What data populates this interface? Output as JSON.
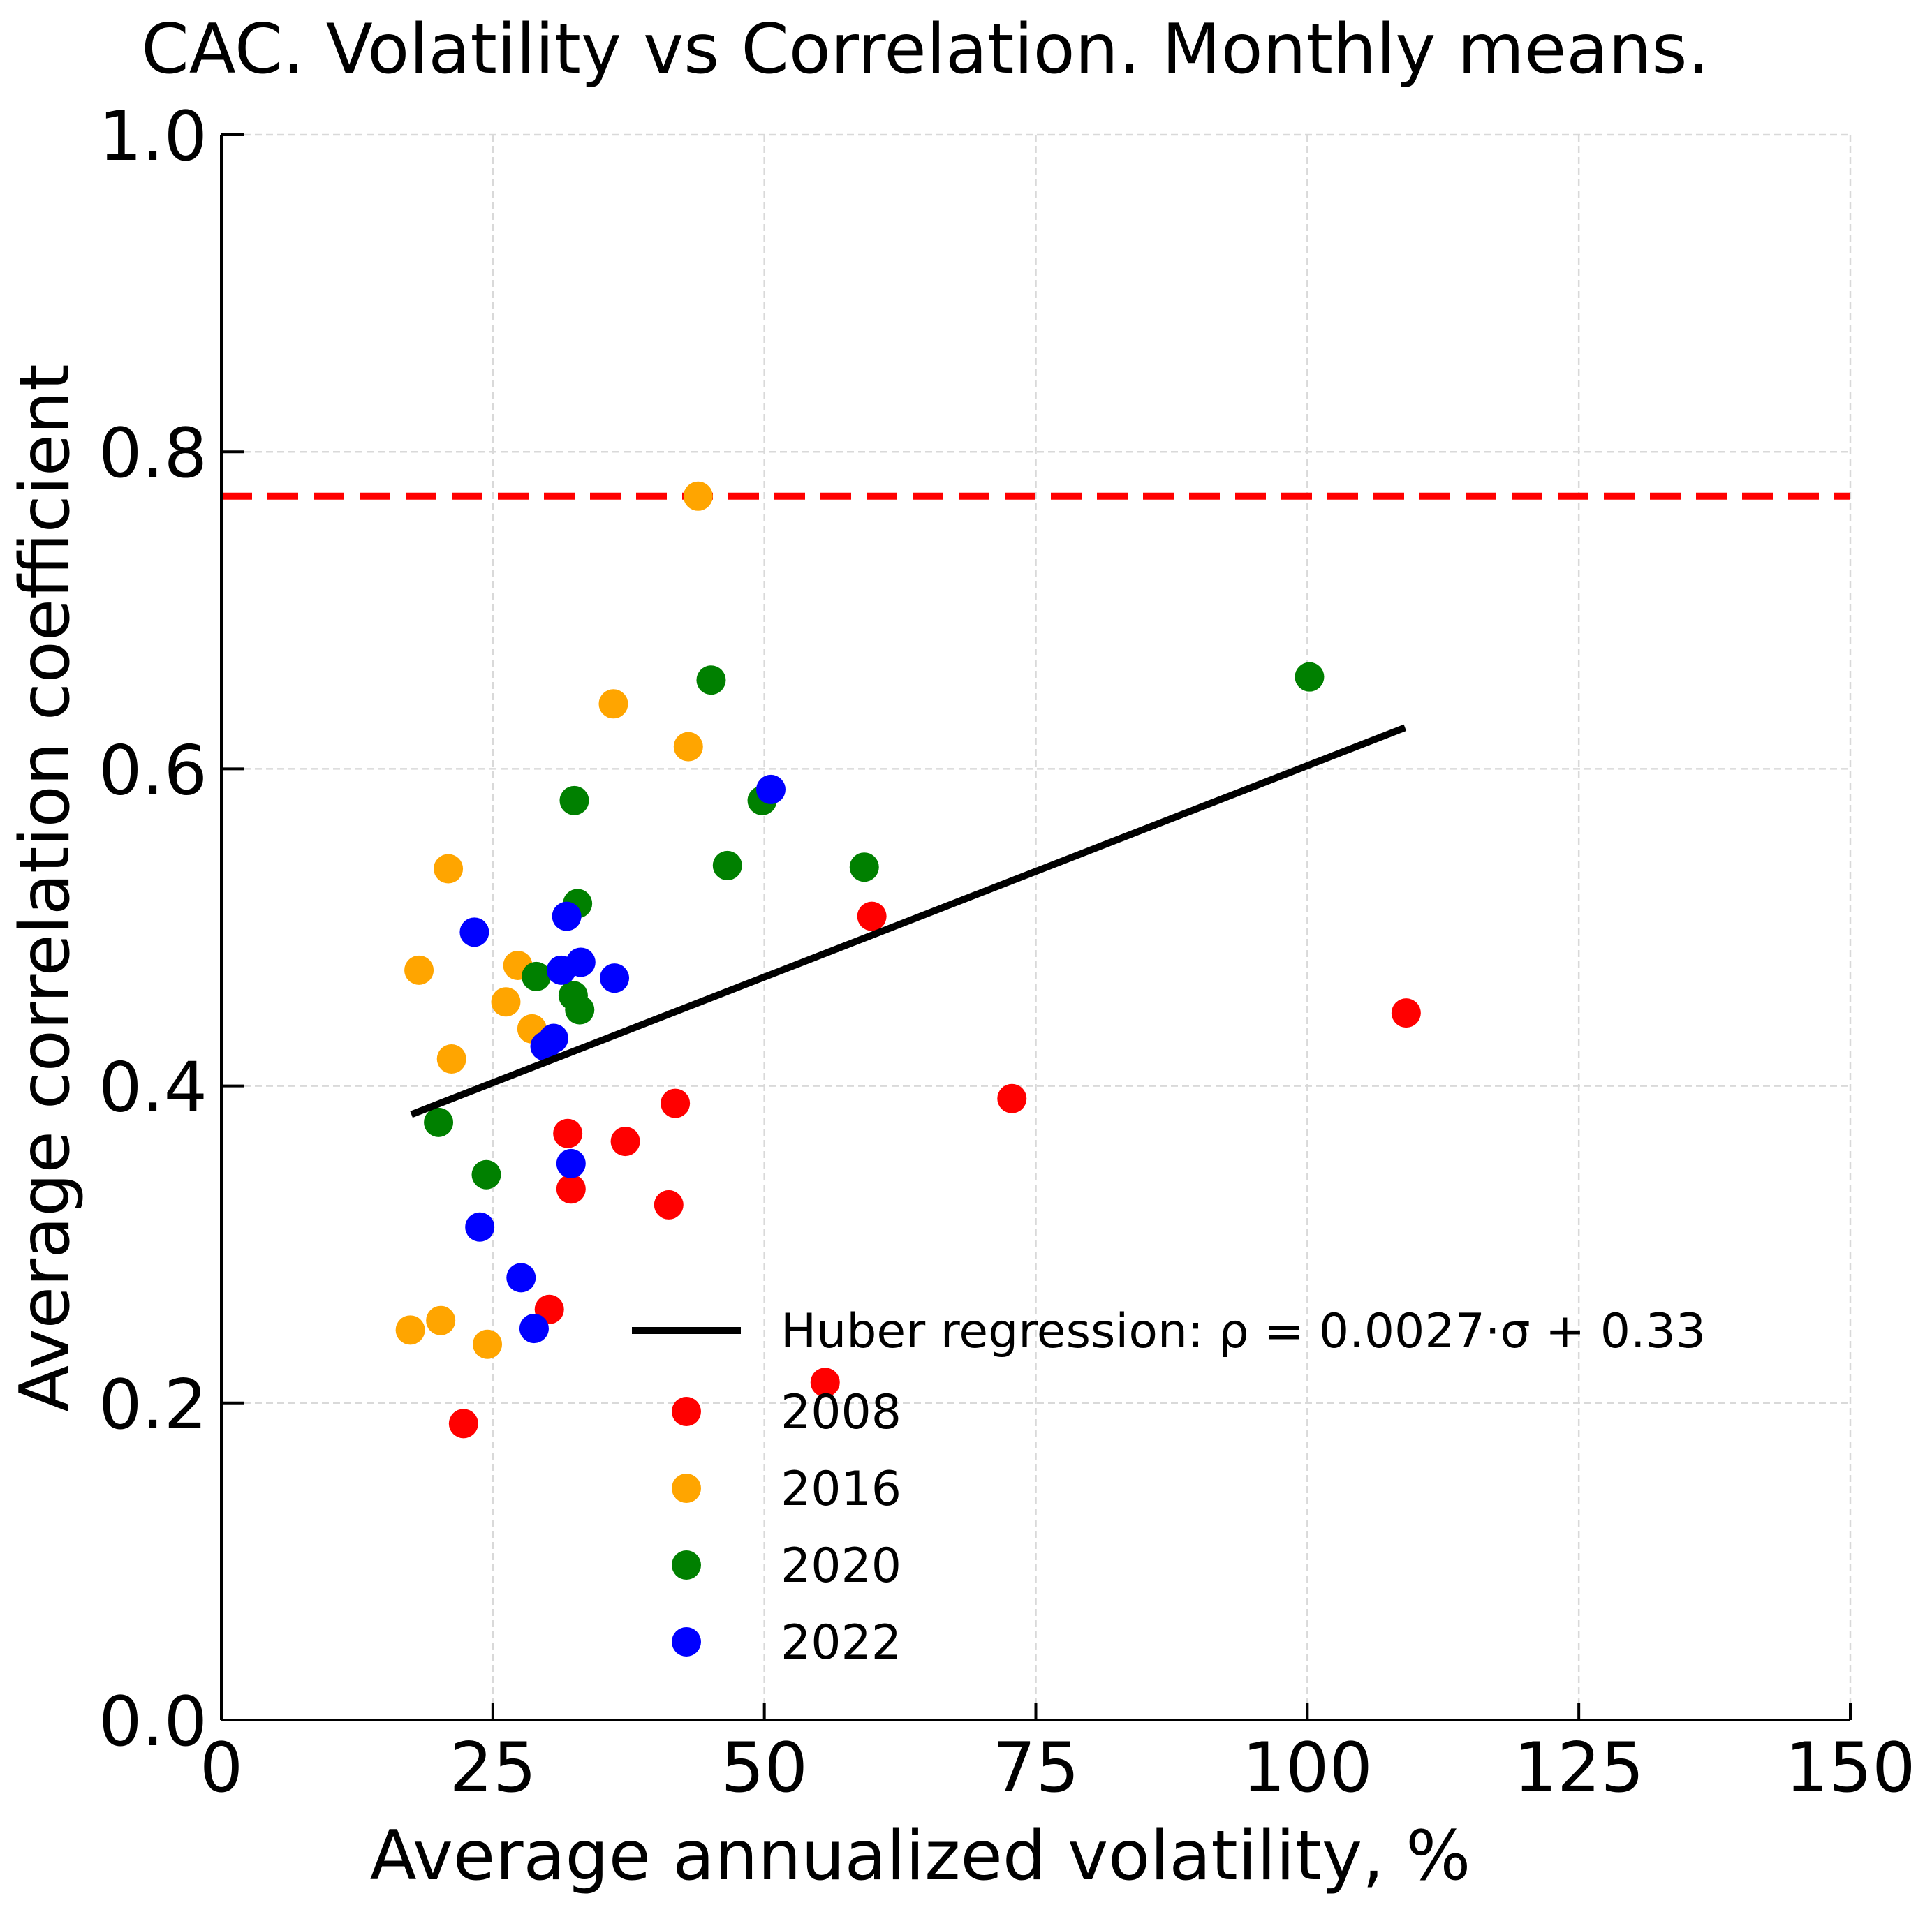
{
  "chart_data": {
    "type": "scatter",
    "title": "CAC. Volatility vs Correlation. Monthly means.",
    "xlabel": "Average annualized volatility, %",
    "ylabel": "Average correlation coefficient",
    "xlim": [
      0,
      150
    ],
    "ylim": [
      0,
      1.0
    ],
    "xticks": [
      "0",
      "25",
      "50",
      "75",
      "100",
      "125",
      "150"
    ],
    "yticks": [
      "0.0",
      "0.2",
      "0.4",
      "0.6",
      "0.8",
      "1.0"
    ],
    "grid": true,
    "legend_position": "lower-right",
    "reference_line": {
      "y": 0.772,
      "color": "#ff0000",
      "style": "dashed"
    },
    "regression": {
      "label": "Huber regression: ρ = 0.0027·σ + 0.33",
      "color": "#000000",
      "x": [
        17.5,
        109.0
      ],
      "y": [
        0.382,
        0.626
      ]
    },
    "series": [
      {
        "name": "2008",
        "color": "#ff0000",
        "points": [
          [
            22.3,
            0.187
          ],
          [
            30.2,
            0.259
          ],
          [
            31.9,
            0.37
          ],
          [
            32.2,
            0.335
          ],
          [
            37.2,
            0.365
          ],
          [
            41.2,
            0.325
          ],
          [
            41.8,
            0.389
          ],
          [
            55.6,
            0.213
          ],
          [
            59.9,
            0.507
          ],
          [
            72.8,
            0.392
          ],
          [
            109.1,
            0.446
          ]
        ]
      },
      {
        "name": "2016",
        "color": "#ffa500",
        "points": [
          [
            17.4,
            0.246
          ],
          [
            18.2,
            0.473
          ],
          [
            20.2,
            0.252
          ],
          [
            20.9,
            0.537
          ],
          [
            21.2,
            0.417
          ],
          [
            24.5,
            0.237
          ],
          [
            26.2,
            0.453
          ],
          [
            27.3,
            0.476
          ],
          [
            28.6,
            0.436
          ],
          [
            36.1,
            0.641
          ],
          [
            43.0,
            0.614
          ],
          [
            43.9,
            0.772
          ]
        ]
      },
      {
        "name": "2020",
        "color": "#008000",
        "points": [
          [
            20.0,
            0.377
          ],
          [
            24.4,
            0.344
          ],
          [
            29.0,
            0.469
          ],
          [
            32.4,
            0.457
          ],
          [
            32.5,
            0.58
          ],
          [
            32.8,
            0.515
          ],
          [
            33.0,
            0.448
          ],
          [
            45.1,
            0.656
          ],
          [
            46.6,
            0.539
          ],
          [
            49.8,
            0.58
          ],
          [
            59.2,
            0.538
          ],
          [
            100.2,
            0.658
          ]
        ]
      },
      {
        "name": "2022",
        "color": "#0000ff",
        "points": [
          [
            23.3,
            0.497
          ],
          [
            23.8,
            0.311
          ],
          [
            27.6,
            0.279
          ],
          [
            28.8,
            0.247
          ],
          [
            29.8,
            0.425
          ],
          [
            30.6,
            0.43
          ],
          [
            31.3,
            0.473
          ],
          [
            31.8,
            0.507
          ],
          [
            32.2,
            0.351
          ],
          [
            33.1,
            0.478
          ],
          [
            36.2,
            0.468
          ],
          [
            50.6,
            0.587
          ]
        ]
      }
    ]
  }
}
